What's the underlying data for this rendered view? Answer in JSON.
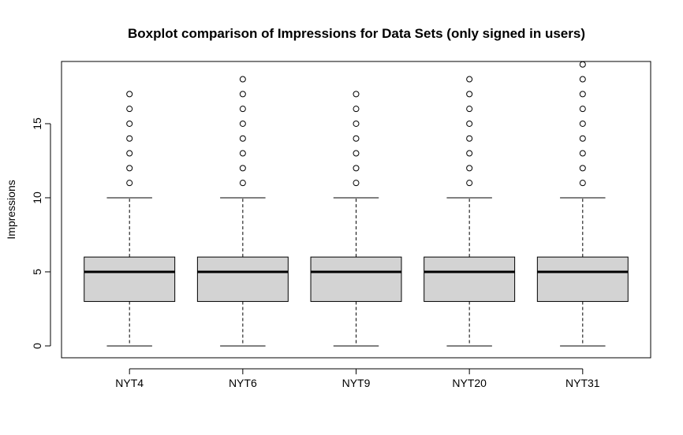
{
  "chart_data": {
    "type": "boxplot",
    "title": "Boxplot comparison of Impressions for Data Sets (only signed in users)",
    "xlabel": "",
    "ylabel": "Impressions",
    "ylim": [
      -0.8,
      19.2
    ],
    "yticks": [
      0,
      5,
      10,
      15
    ],
    "grid": false,
    "categories": [
      "NYT4",
      "NYT6",
      "NYT9",
      "NYT20",
      "NYT31"
    ],
    "boxes": [
      {
        "name": "NYT4",
        "whisker_low": 0,
        "q1": 3,
        "median": 5,
        "q3": 6,
        "whisker_high": 10,
        "outliers": [
          11,
          12,
          13,
          14,
          15,
          16,
          17
        ]
      },
      {
        "name": "NYT6",
        "whisker_low": 0,
        "q1": 3,
        "median": 5,
        "q3": 6,
        "whisker_high": 10,
        "outliers": [
          11,
          12,
          13,
          14,
          15,
          16,
          17,
          18
        ]
      },
      {
        "name": "NYT9",
        "whisker_low": 0,
        "q1": 3,
        "median": 5,
        "q3": 6,
        "whisker_high": 10,
        "outliers": [
          11,
          12,
          13,
          14,
          15,
          16,
          17
        ]
      },
      {
        "name": "NYT20",
        "whisker_low": 0,
        "q1": 3,
        "median": 5,
        "q3": 6,
        "whisker_high": 10,
        "outliers": [
          11,
          12,
          13,
          14,
          15,
          16,
          17,
          18
        ]
      },
      {
        "name": "NYT31",
        "whisker_low": 0,
        "q1": 3,
        "median": 5,
        "q3": 6,
        "whisker_high": 10,
        "outliers": [
          11,
          12,
          13,
          14,
          15,
          16,
          17,
          18,
          19
        ]
      }
    ],
    "colors": {
      "box_fill": "#d3d3d3",
      "stroke": "#000000"
    }
  }
}
